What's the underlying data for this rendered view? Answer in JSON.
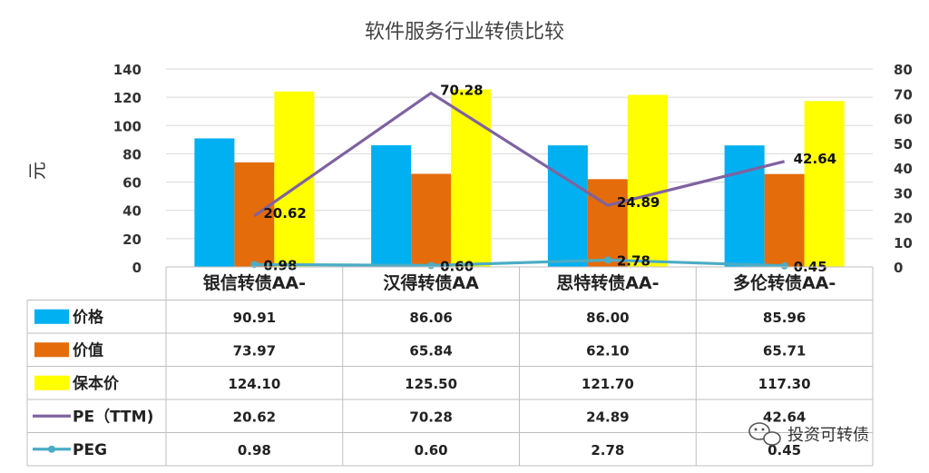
{
  "chart_data": {
    "type": "bar",
    "title": "软件服务行业转债比较",
    "ylabel": "元",
    "ylim": [
      0,
      140
    ],
    "yticks": [
      0,
      20,
      40,
      60,
      80,
      100,
      120,
      140
    ],
    "y2lim": [
      0,
      80
    ],
    "y2ticks": [
      0,
      10,
      20,
      30,
      40,
      50,
      60,
      70,
      80
    ],
    "grid": true,
    "legend": "table-left",
    "categories": [
      "银信转债AA-",
      "汉得转债AA",
      "思特转债AA-",
      "多伦转债AA-"
    ],
    "series": [
      {
        "name": "价格",
        "type": "bar",
        "axis": "left",
        "color": "#00b0f0",
        "values": [
          90.91,
          86.06,
          86.0,
          85.96
        ],
        "labels": [
          "90.91",
          "86.06",
          "86.00",
          "85.96"
        ]
      },
      {
        "name": "价值",
        "type": "bar",
        "axis": "left",
        "color": "#e46c0a",
        "values": [
          73.97,
          65.84,
          62.1,
          65.71
        ],
        "labels": [
          "73.97",
          "65.84",
          "62.10",
          "65.71"
        ]
      },
      {
        "name": "保本价",
        "type": "bar",
        "axis": "left",
        "color": "#ffff00",
        "values": [
          124.1,
          125.5,
          121.7,
          117.3
        ],
        "labels": [
          "124.10",
          "125.50",
          "121.70",
          "117.30"
        ]
      },
      {
        "name": "PE（TTM)",
        "type": "line",
        "axis": "right",
        "color": "#7f62a0",
        "values": [
          20.62,
          70.28,
          24.89,
          42.64
        ],
        "labels": [
          "20.62",
          "70.28",
          "24.89",
          "42.64"
        ]
      },
      {
        "name": "PEG",
        "type": "line",
        "axis": "right",
        "color": "#4bacc6",
        "marker": "circle",
        "values": [
          0.98,
          0.6,
          2.78,
          0.45
        ],
        "labels": [
          "0.98",
          "0.60",
          "2.78",
          "0.45"
        ]
      }
    ]
  },
  "watermark": {
    "text": "投资可转债"
  }
}
